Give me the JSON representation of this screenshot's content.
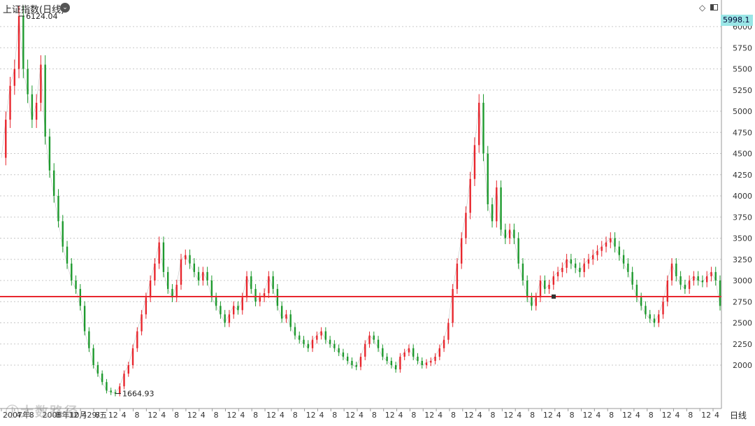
{
  "header": {
    "title": "上证指数(日线)",
    "dropdown_icon": "chevron-down-circle-icon",
    "tools": [
      "diamond-icon",
      "window-icon"
    ]
  },
  "price_tag": "5998.1",
  "period_label": "日线",
  "watermark": "大数路径",
  "colors": {
    "up": "#e8272e",
    "down": "#1e9a2e",
    "baseline": "#e8272e",
    "grid": "#c8c8c8",
    "price_tag_bg": "#9ae6e6"
  },
  "chart_data": {
    "type": "line",
    "title": "上证指数(日线)",
    "ylim": [
      1664.93,
      6124.04
    ],
    "y_ticks": [
      2000,
      2250,
      2500,
      2750,
      3000,
      3250,
      3500,
      3750,
      4000,
      4250,
      4500,
      4750,
      5000,
      5250,
      5500,
      5750,
      6000
    ],
    "x_ticks": [
      "2007年",
      "4",
      "8",
      "2008年10月29/五",
      "8",
      "12",
      "4",
      "8",
      "12",
      "4",
      "8",
      "12",
      "4",
      "8",
      "12",
      "4",
      "8",
      "12",
      "4",
      "8",
      "12",
      "4",
      "8",
      "12",
      "4",
      "8",
      "12",
      "4",
      "8",
      "12",
      "4",
      "8",
      "12",
      "4",
      "8",
      "12",
      "4",
      "8",
      "12",
      "4",
      "8",
      "12",
      "4",
      "8",
      "12",
      "4",
      "8",
      "12",
      "4",
      "8",
      "12",
      "4",
      "8",
      "12",
      "4"
    ],
    "baseline_value": 2810,
    "annotations": [
      {
        "label": "6124.04",
        "x_index": 4,
        "value": 6124.04
      },
      {
        "label": "1664.93",
        "x_index": 26,
        "value": 1664.93
      }
    ],
    "series": [
      {
        "values": [
          4450,
          4900,
          5300,
          5500,
          6124,
          5500,
          5200,
          4900,
          5100,
          5550,
          4700,
          4300,
          4000,
          3700,
          3400,
          3200,
          3000,
          2900,
          2700,
          2400,
          2200,
          2000,
          1900,
          1800,
          1700,
          1680,
          1665,
          1750,
          1900,
          2000,
          2200,
          2400,
          2600,
          2800,
          3000,
          3200,
          3450,
          3100,
          2900,
          2800,
          2950,
          3250,
          3300,
          3200,
          3100,
          3000,
          3100,
          3000,
          2800,
          2700,
          2600,
          2500,
          2600,
          2700,
          2650,
          2800,
          3050,
          2900,
          2750,
          2800,
          2850,
          3050,
          2900,
          2700,
          2550,
          2600,
          2450,
          2350,
          2300,
          2250,
          2200,
          2300,
          2350,
          2400,
          2300,
          2250,
          2200,
          2150,
          2100,
          2050,
          2000,
          1980,
          2100,
          2250,
          2350,
          2300,
          2200,
          2100,
          2050,
          2000,
          1950,
          2100,
          2150,
          2200,
          2100,
          2050,
          2000,
          2030,
          2050,
          2100,
          2200,
          2300,
          2500,
          2900,
          3200,
          3500,
          3800,
          4200,
          4600,
          5100,
          4500,
          3900,
          3700,
          4100,
          3600,
          3500,
          3600,
          3500,
          3200,
          3000,
          2800,
          2700,
          2800,
          3000,
          2900,
          2950,
          3050,
          3100,
          3150,
          3250,
          3200,
          3150,
          3100,
          3200,
          3250,
          3300,
          3350,
          3400,
          3450,
          3500,
          3400,
          3300,
          3200,
          3100,
          2950,
          2800,
          2700,
          2600,
          2550,
          2500,
          2600,
          2750,
          3000,
          3200,
          3050,
          2950,
          2900,
          3000,
          3050,
          3000,
          2980,
          3050,
          3100,
          3000,
          2700
        ]
      }
    ]
  }
}
